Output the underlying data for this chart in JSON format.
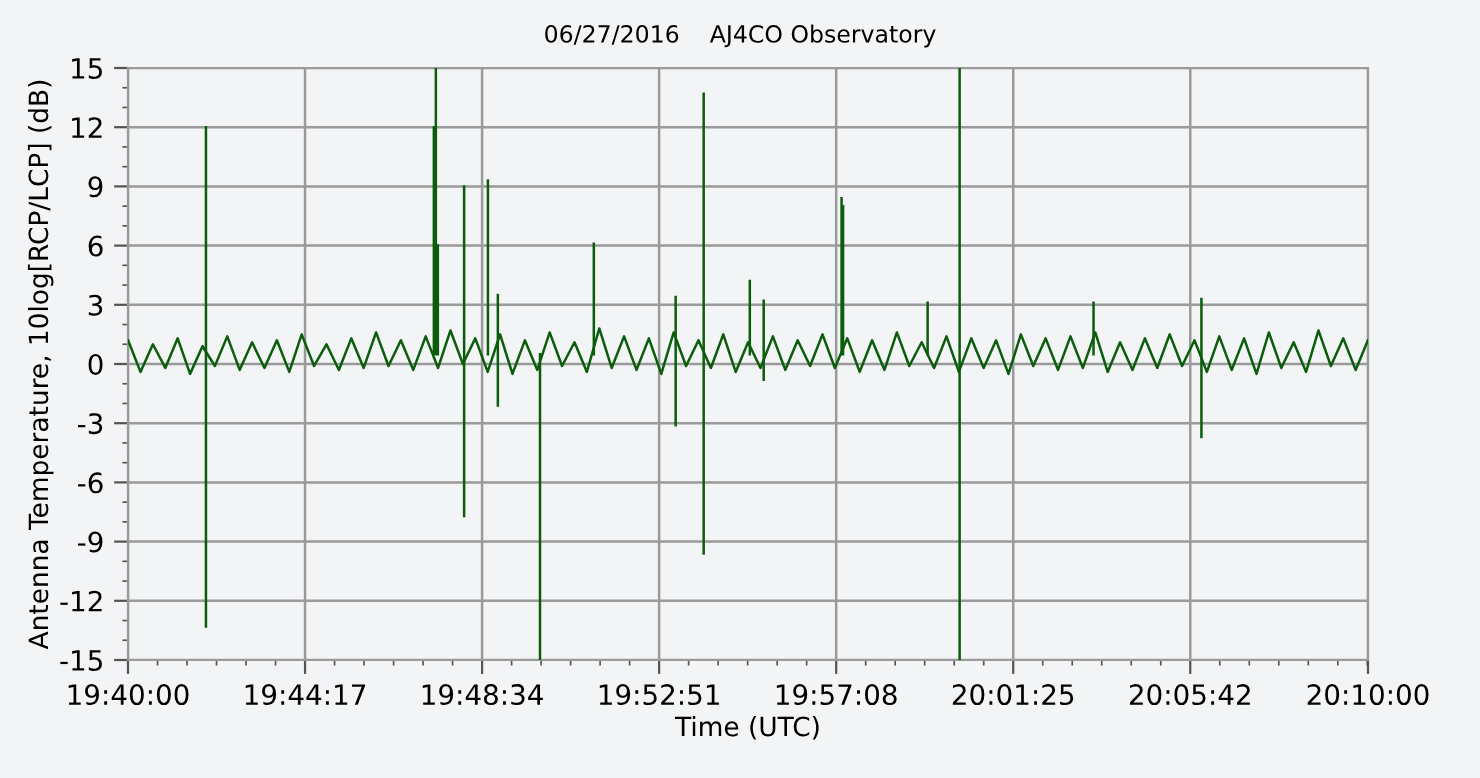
{
  "chart_data": {
    "type": "line",
    "title": "06/27/2016    AJ4CO Observatory",
    "xlabel": "Time (UTC)",
    "ylabel": "Antenna Temperature, 10log[RCP/LCP] (dB)",
    "xlim": [
      19.666667,
      20.166667
    ],
    "xticks": [
      {
        "value": 19.666667,
        "label": "19:40:00"
      },
      {
        "value": 19.738056,
        "label": "19:44:17"
      },
      {
        "value": 19.809444,
        "label": "19:48:34"
      },
      {
        "value": 19.880833,
        "label": "19:52:51"
      },
      {
        "value": 19.952222,
        "label": "19:57:08"
      },
      {
        "value": 20.023611,
        "label": "20:01:25"
      },
      {
        "value": 20.095,
        "label": "20:05:42"
      },
      {
        "value": 20.166667,
        "label": "20:10:00"
      }
    ],
    "ylim": [
      -15,
      15
    ],
    "yticks": [
      -15,
      -12,
      -9,
      -6,
      -3,
      0,
      3,
      6,
      9,
      12,
      15
    ],
    "grid": true,
    "marker": "none",
    "line_style": "solid",
    "series": [
      {
        "color": "#0b5d0b",
        "x": [
          19.6667,
          19.6717,
          19.6767,
          19.6817,
          19.6867,
          19.6917,
          19.6967,
          19.7017,
          19.7067,
          19.7117,
          19.7167,
          19.7217,
          19.7267,
          19.7317,
          19.7367,
          19.7417,
          19.7467,
          19.7517,
          19.7567,
          19.7617,
          19.7667,
          19.7717,
          19.7767,
          19.7817,
          19.7867,
          19.7917,
          19.7967,
          19.8017,
          19.8067,
          19.8117,
          19.8167,
          19.8217,
          19.8267,
          19.8317,
          19.8367,
          19.8417,
          19.8467,
          19.8517,
          19.8567,
          19.8617,
          19.8667,
          19.8717,
          19.8767,
          19.8817,
          19.8867,
          19.8917,
          19.8967,
          19.9017,
          19.9067,
          19.9117,
          19.9167,
          19.9217,
          19.9267,
          19.9317,
          19.9367,
          19.9417,
          19.9467,
          19.9517,
          19.9567,
          19.9617,
          19.9667,
          19.9717,
          19.9767,
          19.9817,
          19.9867,
          19.9917,
          19.9967,
          20.0017,
          20.0067,
          20.0117,
          20.0167,
          20.0217,
          20.0267,
          20.0317,
          20.0367,
          20.0417,
          20.0467,
          20.0517,
          20.0567,
          20.0617,
          20.0667,
          20.0717,
          20.0767,
          20.0817,
          20.0867,
          20.0917,
          20.0967,
          20.1017,
          20.1067,
          20.1117,
          20.1167,
          20.1217,
          20.1267,
          20.1317,
          20.1367,
          20.1417,
          20.1467,
          20.1517,
          20.1567,
          20.1617,
          20.1666
        ],
        "values": [
          1.2,
          -0.4,
          1.0,
          -0.2,
          1.3,
          -0.5,
          0.9,
          -0.1,
          1.4,
          -0.3,
          1.1,
          -0.2,
          1.2,
          -0.4,
          1.5,
          -0.1,
          1.0,
          -0.3,
          1.3,
          -0.2,
          1.6,
          -0.1,
          1.2,
          -0.3,
          1.4,
          -0.2,
          1.7,
          0.0,
          1.3,
          -0.4,
          1.5,
          -0.5,
          1.2,
          -0.3,
          1.6,
          -0.1,
          1.1,
          -0.4,
          1.8,
          -0.2,
          1.4,
          -0.3,
          1.3,
          -0.5,
          1.6,
          -0.1,
          1.2,
          -0.2,
          1.5,
          -0.4,
          1.1,
          -0.2,
          1.4,
          -0.3,
          1.2,
          -0.1,
          1.5,
          -0.2,
          1.3,
          -0.4,
          1.2,
          -0.3,
          1.6,
          -0.1,
          1.1,
          -0.2,
          1.4,
          -0.4,
          1.3,
          -0.2,
          1.2,
          -0.5,
          1.5,
          -0.1,
          1.3,
          -0.3,
          1.4,
          -0.2,
          1.6,
          -0.4,
          1.1,
          -0.3,
          1.3,
          -0.2,
          1.5,
          -0.1,
          1.2,
          -0.4,
          1.4,
          -0.3,
          1.3,
          -0.5,
          1.6,
          -0.2,
          1.1,
          -0.4,
          1.7,
          -0.1,
          1.3,
          -0.3,
          1.2
        ]
      },
      {
        "color": "#0b5d0b",
        "x": [
          19.6981,
          19.6981,
          null,
          19.79,
          19.79,
          null,
          19.7908,
          19.7908,
          null,
          19.7916,
          19.7916,
          null,
          19.8022,
          19.8022,
          null,
          19.8118,
          19.8118,
          null,
          19.8158,
          19.8158,
          null,
          19.8328,
          19.8328,
          null,
          19.8545,
          19.8545,
          null,
          19.8875,
          19.8875,
          null,
          19.8988,
          19.8988,
          null,
          19.9174,
          19.9174,
          null,
          19.923,
          19.923,
          null,
          19.9544,
          19.9544,
          null,
          19.955,
          19.955,
          null,
          19.9891,
          19.9891,
          null,
          20.002,
          20.002,
          null,
          20.056,
          20.056,
          null,
          20.0995,
          20.0995
        ],
        "values": [
          12,
          -13.3,
          null,
          12,
          0.5,
          null,
          15,
          0.5,
          null,
          6,
          0.5,
          null,
          9,
          -7.7,
          null,
          9.3,
          0.5,
          null,
          3.5,
          -2.1,
          null,
          0.5,
          -15,
          null,
          6.1,
          0.5,
          null,
          3.4,
          -3.1,
          null,
          13.7,
          -9.6,
          null,
          4.2,
          0.5,
          null,
          3.2,
          -0.8,
          null,
          8.4,
          0.5,
          null,
          8.0,
          0.5,
          null,
          3.1,
          0.5,
          null,
          15,
          -15,
          null,
          3.1,
          0.5,
          null,
          3.3,
          -3.7
        ]
      }
    ]
  }
}
